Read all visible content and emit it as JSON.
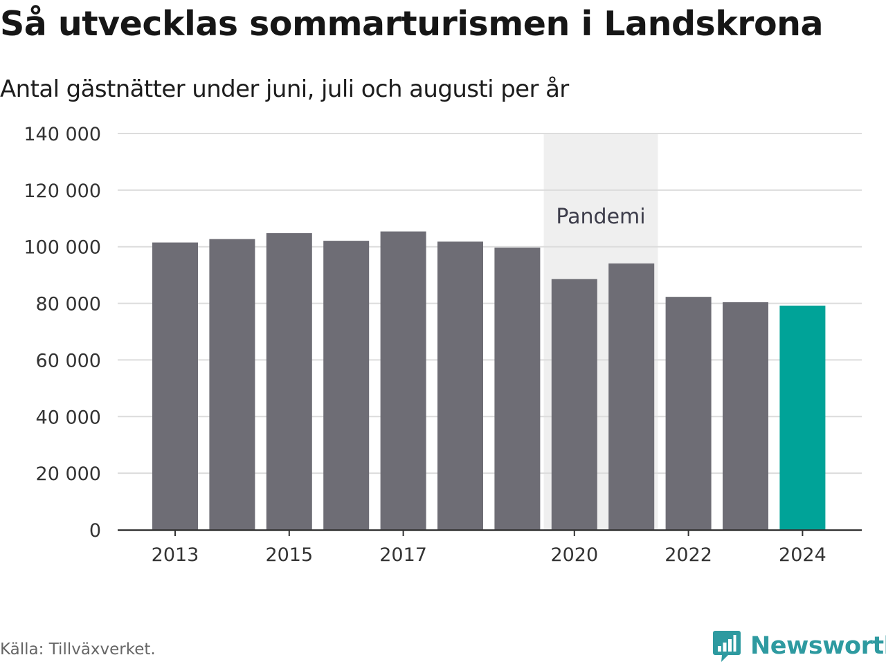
{
  "header": {
    "title": "Så utvecklas sommarturismen i Landskrona",
    "subtitle": "Antal gästnätter under juni, juli och augusti per år"
  },
  "footer": {
    "source": "Källa: Tillväxverket.",
    "brand": "Newsworthy",
    "brand_icon": "bar-chart-speech-bubble-icon"
  },
  "colors": {
    "bar": "#6e6d75",
    "highlight": "#00a398",
    "band": "#efefef",
    "grid": "#dcdcdc",
    "axis": "#333333",
    "brand": "#2e9aa0"
  },
  "chart_data": {
    "type": "bar",
    "title": "Så utvecklas sommarturismen i Landskrona",
    "subtitle": "Antal gästnätter under juni, juli och augusti per år",
    "categories": [
      "2013",
      "2014",
      "2015",
      "2016",
      "2017",
      "2018",
      "2019",
      "2020",
      "2021",
      "2022",
      "2023",
      "2024"
    ],
    "values": [
      101500,
      102700,
      104800,
      102100,
      105400,
      101800,
      99700,
      88600,
      94100,
      82300,
      80400,
      79200
    ],
    "highlight": "2024",
    "x_tick_labels": [
      "2013",
      "2015",
      "2017",
      "2020",
      "2022",
      "2024"
    ],
    "y_ticks": [
      0,
      20000,
      40000,
      60000,
      80000,
      100000,
      120000,
      140000
    ],
    "y_tick_labels": [
      "0",
      "20 000",
      "40 000",
      "60 000",
      "80 000",
      "100 000",
      "120 000",
      "140 000"
    ],
    "ylim": [
      0,
      140000
    ],
    "grid": true,
    "legend": "none",
    "annotation": {
      "label": "Pandemi",
      "from": "2020",
      "to": "2021"
    }
  }
}
